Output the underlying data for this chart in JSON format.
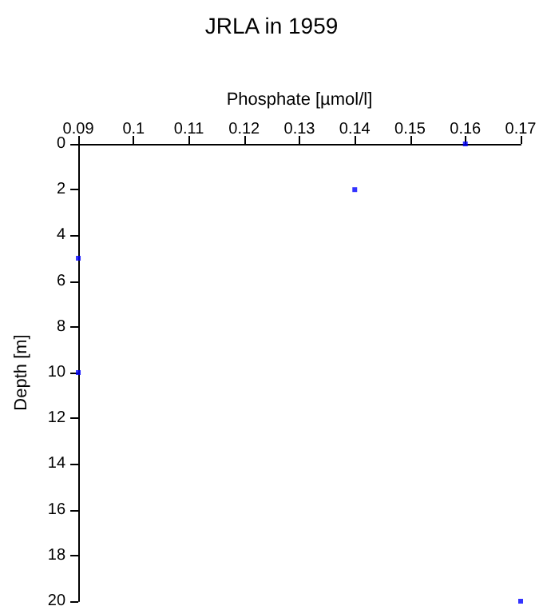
{
  "chart_data": {
    "type": "scatter",
    "title": "JRLA in 1959",
    "xlabel": "Phosphate [µmol/l]",
    "ylabel": "Depth [m]",
    "x": [
      0.16,
      0.14,
      0.09,
      0.09,
      0.17
    ],
    "series": [
      {
        "color": "#0000ff",
        "values": [
          0,
          2,
          5,
          10,
          20
        ]
      }
    ],
    "xlim": [
      0.09,
      0.17
    ],
    "xticks": [
      0.09,
      0.1,
      0.11,
      0.12,
      0.13,
      0.14,
      0.15,
      0.16,
      0.17
    ],
    "ylim": [
      20,
      0
    ],
    "yticks": [
      0,
      2,
      4,
      6,
      8,
      10,
      12,
      14,
      16,
      18,
      20
    ],
    "marker": "square"
  }
}
